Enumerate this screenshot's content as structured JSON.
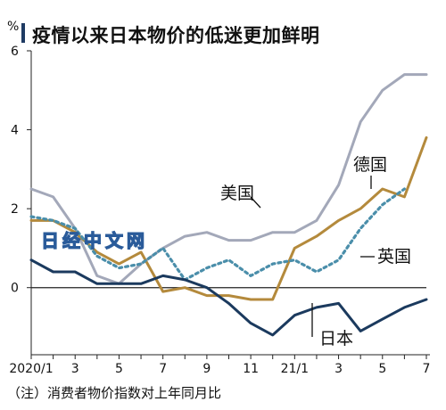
{
  "title": "疫情以来日本物价的低迷更加鲜明",
  "unit": "%",
  "note": "（注）消费者物价指数对上年同月比",
  "watermark": "日经中文网",
  "chart_data": {
    "type": "line",
    "title": "疫情以来日本物价的低迷更加鲜明",
    "ylabel": "%",
    "ylim": [
      -1.7,
      6
    ],
    "yticks": [
      6,
      4,
      2,
      0
    ],
    "x": [
      "2020/1",
      "2020/2",
      "2020/3",
      "2020/4",
      "2020/5",
      "2020/6",
      "2020/7",
      "2020/8",
      "2020/9",
      "2020/10",
      "2020/11",
      "2020/12",
      "2021/1",
      "2021/2",
      "2021/3",
      "2021/4",
      "2021/5",
      "2021/6",
      "2021/7"
    ],
    "xtick_labels": [
      "2020/1",
      "3",
      "5",
      "7",
      "9",
      "11",
      "21/1",
      "3",
      "5",
      "7"
    ],
    "series": [
      {
        "name": "美国",
        "color": "#a3a8b9",
        "dash": "none",
        "values": [
          2.5,
          2.3,
          1.5,
          0.3,
          0.1,
          0.6,
          1.0,
          1.3,
          1.4,
          1.2,
          1.2,
          1.4,
          1.4,
          1.7,
          2.6,
          4.2,
          5.0,
          5.4,
          5.4
        ]
      },
      {
        "name": "德国",
        "color": "#b48a3c",
        "dash": "none",
        "values": [
          1.7,
          1.7,
          1.4,
          0.9,
          0.6,
          0.9,
          -0.1,
          0.0,
          -0.2,
          -0.2,
          -0.3,
          -0.3,
          1.0,
          1.3,
          1.7,
          2.0,
          2.5,
          2.3,
          3.8
        ]
      },
      {
        "name": "英国",
        "color": "#4a8eaa",
        "dash": "dotted",
        "values": [
          1.8,
          1.7,
          1.5,
          0.8,
          0.5,
          0.6,
          1.0,
          0.2,
          0.5,
          0.7,
          0.3,
          0.6,
          0.7,
          0.4,
          0.7,
          1.5,
          2.1,
          2.5,
          null
        ]
      },
      {
        "name": "日本",
        "color": "#1b3a5e",
        "dash": "none",
        "values": [
          0.7,
          0.4,
          0.4,
          0.1,
          0.1,
          0.1,
          0.3,
          0.2,
          0.0,
          -0.4,
          -0.9,
          -1.2,
          -0.7,
          -0.5,
          -0.4,
          -1.1,
          -0.8,
          -0.5,
          -0.3
        ]
      }
    ],
    "labels": [
      "美国",
      "德国",
      "英国",
      "日本"
    ]
  }
}
